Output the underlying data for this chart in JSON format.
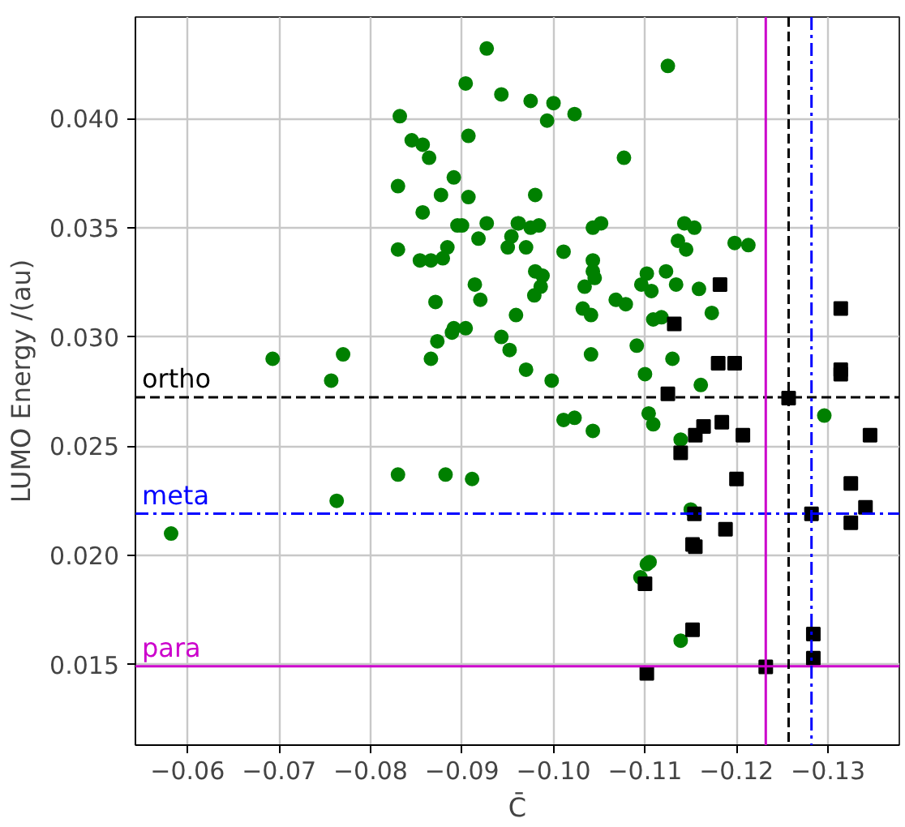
{
  "chart_data": {
    "type": "scatter",
    "xlabel": "C̄",
    "ylabel": "LUMO Energy /(au)",
    "xlim": [
      -0.0543,
      -0.1378
    ],
    "ylim": [
      0.01132,
      0.04464
    ],
    "xticks": [
      {
        "value": -0.06,
        "label": "−0.06"
      },
      {
        "value": -0.07,
        "label": "−0.07"
      },
      {
        "value": -0.08,
        "label": "−0.08"
      },
      {
        "value": -0.09,
        "label": "−0.09"
      },
      {
        "value": -0.1,
        "label": "−0.10"
      },
      {
        "value": -0.11,
        "label": "−0.11"
      },
      {
        "value": -0.12,
        "label": "−0.12"
      },
      {
        "value": -0.13,
        "label": "−0.13"
      }
    ],
    "yticks": [
      {
        "value": 0.015,
        "label": "0.015"
      },
      {
        "value": 0.02,
        "label": "0.020"
      },
      {
        "value": 0.025,
        "label": "0.025"
      },
      {
        "value": 0.03,
        "label": "0.030"
      },
      {
        "value": 0.035,
        "label": "0.035"
      },
      {
        "value": 0.04,
        "label": "0.040"
      }
    ],
    "grid": true,
    "ref_lines": [
      {
        "axis": "y",
        "value": 0.02724,
        "label": "ortho",
        "color": "#000000",
        "line_style": "dashed"
      },
      {
        "axis": "y",
        "value": 0.02191,
        "label": "meta",
        "color": "#0000ff",
        "line_style": "dashdot"
      },
      {
        "axis": "y",
        "value": 0.01493,
        "label": "para",
        "color": "#cc00cc",
        "line_style": "solid"
      },
      {
        "axis": "x",
        "value": -0.1232,
        "color": "#cc00cc",
        "line_style": "solid"
      },
      {
        "axis": "x",
        "value": -0.1257,
        "color": "#000000",
        "line_style": "dashed"
      },
      {
        "axis": "x",
        "value": -0.1282,
        "color": "#0000ff",
        "line_style": "dashdot"
      }
    ],
    "series": [
      {
        "marker": "circle",
        "color": "#008000",
        "x": [
          -0.0582,
          -0.0693,
          -0.077,
          -0.0757,
          -0.0763,
          -0.083,
          -0.0882,
          -0.0911,
          -0.0927,
          -0.0904,
          -0.0943,
          -0.0832,
          -0.0845,
          -0.0857,
          -0.0907,
          -0.0864,
          -0.0891,
          -0.083,
          -0.0877,
          -0.0907,
          -0.0857,
          -0.0895,
          -0.09,
          -0.0927,
          -0.0961,
          -0.0954,
          -0.0918,
          -0.083,
          -0.0884,
          -0.095,
          -0.097,
          -0.0854,
          -0.0866,
          -0.0879,
          -0.0914,
          -0.092,
          -0.0871,
          -0.0959,
          -0.0891,
          -0.0889,
          -0.0904,
          -0.0873,
          -0.0943,
          -0.0952,
          -0.0866,
          -0.097,
          -0.1125,
          -0.0975,
          -0.1,
          -0.0993,
          -0.1023,
          -0.1077,
          -0.098,
          -0.0962,
          -0.0975,
          -0.0984,
          -0.1043,
          -0.1052,
          -0.1143,
          -0.1154,
          -0.1136,
          -0.1145,
          -0.1198,
          -0.1213,
          -0.1011,
          -0.1043,
          -0.1043,
          -0.1045,
          -0.098,
          -0.0988,
          -0.1102,
          -0.1123,
          -0.1034,
          -0.0986,
          -0.0979,
          -0.1096,
          -0.1107,
          -0.1134,
          -0.1159,
          -0.1068,
          -0.1079,
          -0.1032,
          -0.1041,
          -0.1109,
          -0.1118,
          -0.1173,
          -0.1091,
          -0.1041,
          -0.113,
          -0.11,
          -0.0998,
          -0.1161,
          -0.1296,
          -0.1011,
          -0.1023,
          -0.1043,
          -0.1104,
          -0.1109,
          -0.1139,
          -0.115,
          -0.1102,
          -0.1105,
          -0.1095,
          -0.1139
        ],
        "values": [
          0.021,
          0.029,
          0.0292,
          0.028,
          0.0225,
          0.0237,
          0.0237,
          0.0235,
          0.0432,
          0.0416,
          0.0411,
          0.0401,
          0.039,
          0.0388,
          0.0392,
          0.0382,
          0.0373,
          0.0369,
          0.0365,
          0.0364,
          0.0357,
          0.0351,
          0.0351,
          0.0352,
          0.0352,
          0.0346,
          0.0345,
          0.034,
          0.0341,
          0.0341,
          0.0341,
          0.0335,
          0.0335,
          0.0336,
          0.0324,
          0.0317,
          0.0316,
          0.031,
          0.0304,
          0.0302,
          0.0304,
          0.0298,
          0.03,
          0.0294,
          0.029,
          0.0285,
          0.0424,
          0.0408,
          0.0407,
          0.0399,
          0.0402,
          0.0382,
          0.0365,
          0.0352,
          0.035,
          0.0351,
          0.035,
          0.0352,
          0.0352,
          0.035,
          0.0344,
          0.034,
          0.0343,
          0.0342,
          0.0339,
          0.0335,
          0.033,
          0.0327,
          0.033,
          0.0328,
          0.0329,
          0.033,
          0.0323,
          0.0323,
          0.0319,
          0.0324,
          0.0321,
          0.0324,
          0.0322,
          0.0317,
          0.0315,
          0.0313,
          0.031,
          0.0308,
          0.0309,
          0.0311,
          0.0296,
          0.0292,
          0.029,
          0.0283,
          0.028,
          0.0278,
          0.0264,
          0.0262,
          0.0263,
          0.0257,
          0.0265,
          0.026,
          0.0253,
          0.0221,
          0.0196,
          0.0197,
          0.019,
          0.0161
        ]
      },
      {
        "marker": "square",
        "color": "#000000",
        "x": [
          -0.1182,
          -0.1314,
          -0.1132,
          -0.118,
          -0.1198,
          -0.1314,
          -0.1314,
          -0.1125,
          -0.1257,
          -0.1155,
          -0.1164,
          -0.1184,
          -0.1207,
          -0.1139,
          -0.12,
          -0.1346,
          -0.1325,
          -0.1341,
          -0.1325,
          -0.1282,
          -0.1154,
          -0.1188,
          -0.1152,
          -0.1155,
          -0.11,
          -0.1152,
          -0.1284,
          -0.1284,
          -0.1232,
          -0.1102
        ],
        "values": [
          0.0324,
          0.0313,
          0.0306,
          0.0288,
          0.0288,
          0.0285,
          0.0283,
          0.0274,
          0.0272,
          0.0255,
          0.0259,
          0.0261,
          0.0255,
          0.0247,
          0.0235,
          0.0255,
          0.0233,
          0.0222,
          0.0215,
          0.0219,
          0.0219,
          0.0212,
          0.0205,
          0.0204,
          0.0187,
          0.0166,
          0.0164,
          0.0153,
          0.0149,
          0.0146
        ]
      }
    ]
  }
}
